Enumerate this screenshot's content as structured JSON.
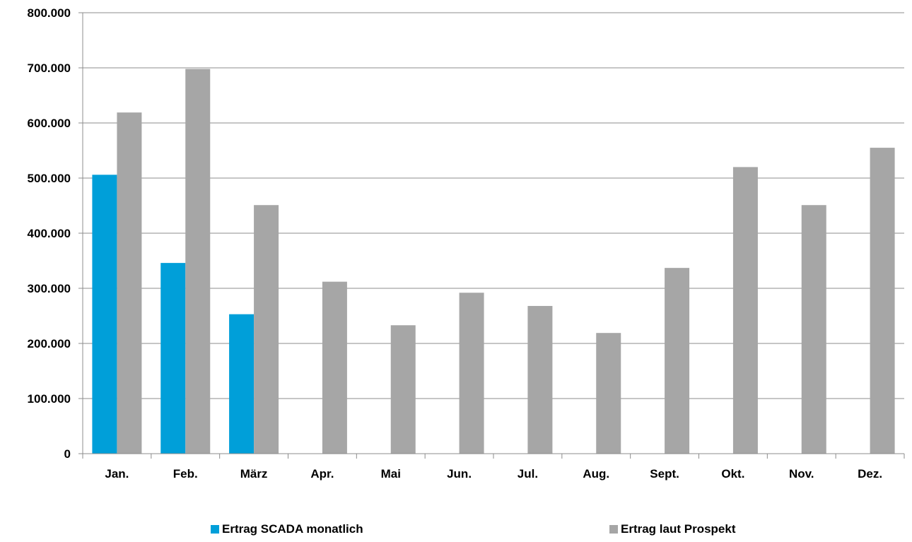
{
  "chart_data": {
    "type": "bar",
    "categories": [
      "Jan.",
      "Feb.",
      "März",
      "Apr.",
      "Mai",
      "Jun.",
      "Jul.",
      "Aug.",
      "Sept.",
      "Okt.",
      "Nov.",
      "Dez."
    ],
    "series": [
      {
        "name": "Ertrag SCADA monatlich",
        "color": "#009FD9",
        "values": [
          506000,
          346000,
          253000,
          null,
          null,
          null,
          null,
          null,
          null,
          null,
          null,
          null
        ]
      },
      {
        "name": "Ertrag laut Prospekt",
        "color": "#A6A6A6",
        "values": [
          619000,
          698000,
          451000,
          312000,
          233000,
          292000,
          268000,
          219000,
          337000,
          520000,
          451000,
          555000
        ]
      }
    ],
    "ylim": [
      0,
      800000
    ],
    "yticks": [
      0,
      100000,
      200000,
      300000,
      400000,
      500000,
      600000,
      700000,
      800000
    ],
    "ytick_labels": [
      "0",
      "100.000",
      "200.000",
      "300.000",
      "400.000",
      "500.000",
      "600.000",
      "700.000",
      "800.000"
    ],
    "grid": true,
    "legend_position": "bottom",
    "title": "",
    "xlabel": "",
    "ylabel": ""
  },
  "legend": {
    "items": [
      {
        "label": "Ertrag SCADA monatlich",
        "color": "#009FD9"
      },
      {
        "label": "Ertrag laut Prospekt",
        "color": "#A6A6A6"
      }
    ]
  }
}
